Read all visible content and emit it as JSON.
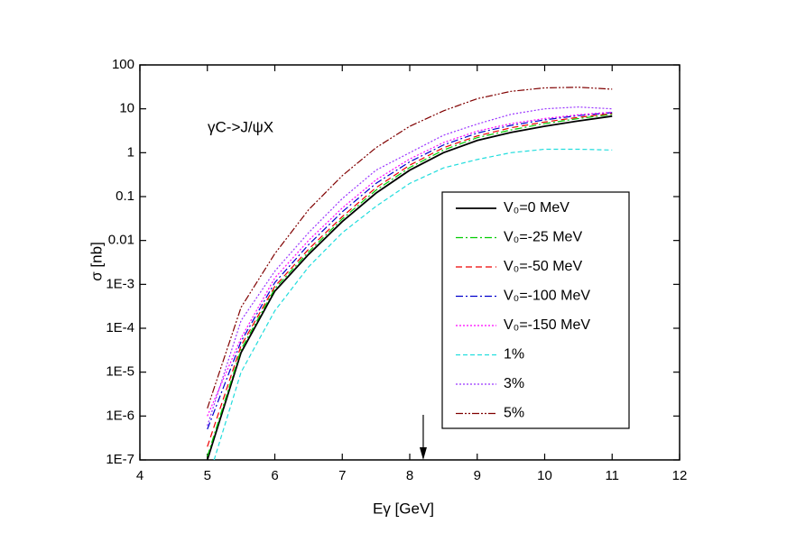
{
  "chart_data": {
    "type": "line",
    "x_label": "Eγ [GeV]",
    "y_label": "σ [nb]",
    "annotation": "γC->J/ψX",
    "arrow_x": 8.2,
    "x": [
      5,
      5.5,
      6,
      6.5,
      7,
      7.5,
      8,
      8.5,
      9,
      9.5,
      10,
      10.5,
      11
    ],
    "xlim": [
      4,
      12
    ],
    "xticks": [
      4,
      5,
      6,
      7,
      8,
      9,
      10,
      11,
      12
    ],
    "ylim": [
      1e-07,
      100
    ],
    "log_y": true,
    "yticks": [
      {
        "value": 1e-07,
        "label": "1E-7"
      },
      {
        "value": 1e-06,
        "label": "1E-6"
      },
      {
        "value": 1e-05,
        "label": "1E-5"
      },
      {
        "value": 0.0001,
        "label": "1E-4"
      },
      {
        "value": 0.001,
        "label": "1E-3"
      },
      0.01,
      0.1,
      1,
      10,
      100
    ],
    "legend": "center-right",
    "series": [
      {
        "name": "V₀=0 MeV",
        "color": "#000000",
        "dash": "none",
        "values": [
          1e-07,
          2.8e-05,
          0.0007,
          0.0048,
          0.027,
          0.12,
          0.4,
          1.0,
          1.9,
          2.9,
          4.0,
          5.3,
          6.8
        ]
      },
      {
        "name": "V₀=-25 MeV",
        "color": "#00cc00",
        "dash": "8 3 2 3",
        "values": [
          1.2e-07,
          3.3e-05,
          0.0008,
          0.0055,
          0.031,
          0.14,
          0.46,
          1.15,
          2.2,
          3.3,
          4.6,
          6.0,
          7.5
        ]
      },
      {
        "name": "V₀=-50 MeV",
        "color": "#ee0000",
        "dash": "7 4",
        "values": [
          2e-07,
          4e-05,
          0.0009,
          0.0063,
          0.035,
          0.16,
          0.52,
          1.3,
          2.4,
          3.7,
          5.0,
          6.4,
          7.8
        ]
      },
      {
        "name": "V₀=-100 MeV",
        "color": "#0000cc",
        "dash": "8 3 2 3",
        "values": [
          5e-07,
          5e-05,
          0.0011,
          0.008,
          0.045,
          0.2,
          0.62,
          1.5,
          2.8,
          4.2,
          5.6,
          7.0,
          8.2
        ]
      },
      {
        "name": "V₀=-150 MeV",
        "color": "#ff00ff",
        "dash": "2 2",
        "values": [
          1e-06,
          6e-05,
          0.0014,
          0.01,
          0.055,
          0.24,
          0.72,
          1.7,
          3.1,
          4.6,
          6.0,
          7.3,
          8.4
        ]
      },
      {
        "name": "1%",
        "color": "#22dddd",
        "dash": "5 3",
        "x": [
          5.1,
          5.5,
          6,
          6.5,
          7,
          7.5,
          8,
          8.5,
          9,
          9.5,
          10,
          10.5,
          11
        ],
        "values": [
          1e-07,
          1e-05,
          0.00025,
          0.0025,
          0.015,
          0.06,
          0.2,
          0.45,
          0.7,
          1.0,
          1.2,
          1.2,
          1.15
        ]
      },
      {
        "name": "3%",
        "color": "#9933ff",
        "dash": "2 2",
        "values": [
          6e-07,
          0.00015,
          0.002,
          0.015,
          0.09,
          0.4,
          1.0,
          2.5,
          4.5,
          7.5,
          10,
          11,
          10
        ]
      },
      {
        "name": "5%",
        "color": "#800000",
        "dash": "8 2 2 2 2 2",
        "values": [
          1.5e-06,
          0.0003,
          0.005,
          0.05,
          0.3,
          1.3,
          4,
          9,
          17,
          25,
          30,
          31,
          28
        ]
      }
    ]
  }
}
